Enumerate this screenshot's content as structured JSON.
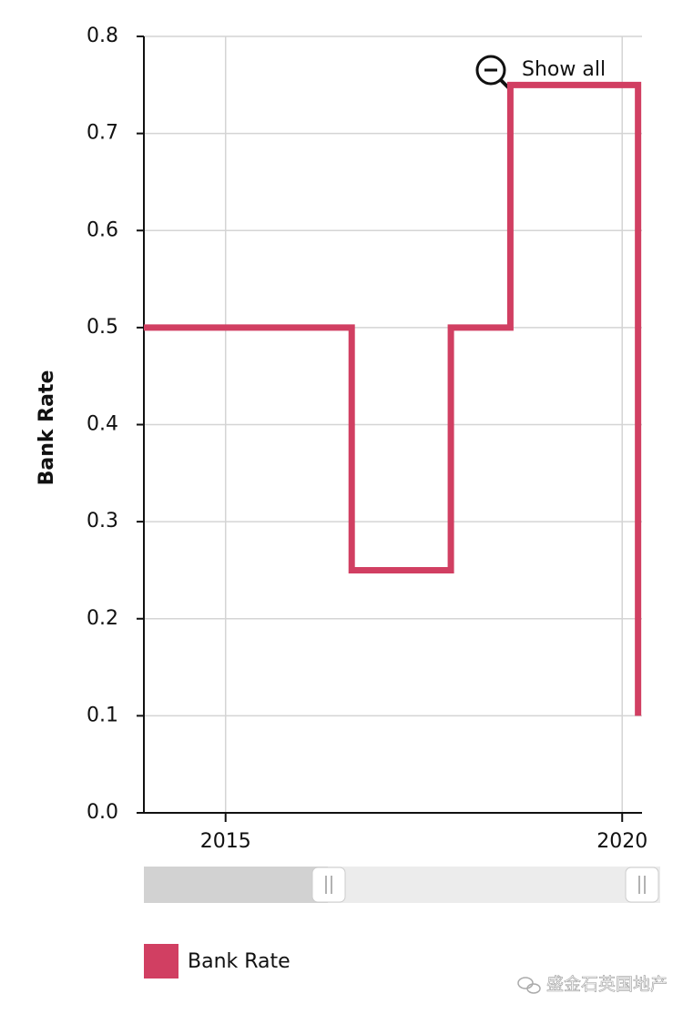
{
  "chart_data": {
    "type": "line",
    "y_label": "Bank Rate",
    "x": [
      2013.97,
      2016.59,
      2016.59,
      2017.84,
      2017.84,
      2018.59,
      2018.59,
      2020.2,
      2020.2
    ],
    "series": [
      {
        "name": "Bank Rate",
        "color": "#d13f62",
        "values": [
          0.5,
          0.5,
          0.25,
          0.25,
          0.5,
          0.5,
          0.75,
          0.75,
          0.1
        ]
      }
    ],
    "xlim": [
      2013.97,
      2020.25
    ],
    "xticks": [
      2015,
      2020
    ],
    "ylim": [
      0,
      0.8
    ],
    "yticks": [
      {
        "value": 0,
        "label": "0.0"
      },
      0.1,
      0.2,
      0.3,
      0.4,
      0.5,
      0.6,
      0.7,
      0.8
    ],
    "grid": true
  },
  "controls": {
    "zoom_reset": "Show all"
  },
  "watermark": "盛金石英国地产"
}
